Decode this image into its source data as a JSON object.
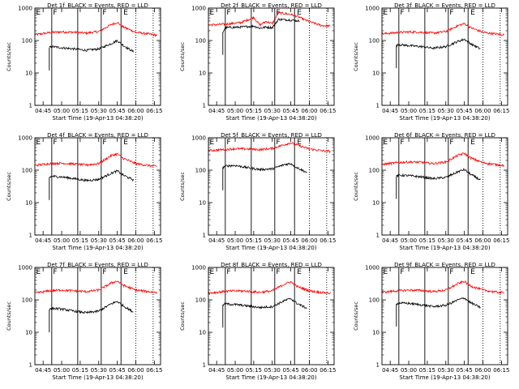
{
  "figure": {
    "xlabel": "Start Time (19-Apr-13 04:38:20)",
    "ylabel": "Counts/sec"
  },
  "colors": {
    "events": "#000000",
    "lld": "#ff0000",
    "background": "#ffffff"
  },
  "chart_data": [
    {
      "type": "line",
      "title": "Det 1f_BLACK = Events, RED = LLD",
      "xlabel": "Start Time (19-Apr-13 04:38:20)",
      "ylabel": "Counts/sec",
      "yscale": "log",
      "ylim": [
        1,
        1000
      ],
      "xlim": [
        "04:38:20",
        "06:20:00"
      ],
      "x_ticks": [
        "04:45",
        "05:00",
        "05:15",
        "05:30",
        "05:45",
        "06:00",
        "06:15"
      ],
      "y_ticks": [
        "1",
        "10",
        "100",
        "1000"
      ],
      "solid_lines": [
        "04:52",
        "05:13",
        "05:32",
        "05:48"
      ],
      "dotted_lines": [
        "06:00",
        "06:14"
      ],
      "markers": [
        {
          "label": "F",
          "at": "04:52"
        },
        {
          "label": "F",
          "at": "05:32"
        },
        {
          "label": "E",
          "at": "05:49"
        }
      ],
      "series": [
        {
          "name": "LLD",
          "color": "red",
          "x": [
            "04:38",
            "04:50",
            "05:00",
            "05:10",
            "05:20",
            "05:30",
            "05:40",
            "05:45",
            "05:50",
            "06:00",
            "06:10",
            "06:17"
          ],
          "values": [
            150,
            175,
            185,
            180,
            170,
            190,
            310,
            360,
            260,
            180,
            160,
            145
          ]
        },
        {
          "name": "Events",
          "color": "black",
          "x": [
            "04:50",
            "04:52",
            "05:00",
            "05:10",
            "05:20",
            "05:30",
            "05:40",
            "05:45",
            "05:50",
            "05:58"
          ],
          "values": [
            60,
            65,
            60,
            55,
            50,
            55,
            80,
            100,
            70,
            45
          ]
        }
      ]
    },
    {
      "type": "line",
      "title": "Det 2f_BLACK = Events, RED = LLD",
      "xlabel": "Start Time (19-Apr-13 04:38:20)",
      "ylabel": "Counts/sec",
      "yscale": "log",
      "ylim": [
        1,
        1000
      ],
      "xlim": [
        "04:38:20",
        "06:20:00"
      ],
      "x_ticks": [
        "04:45",
        "05:00",
        "05:15",
        "05:30",
        "05:45",
        "06:00",
        "06:15"
      ],
      "y_ticks": [
        "1",
        "10",
        "100",
        "1000"
      ],
      "solid_lines": [
        "04:52",
        "05:13",
        "05:32",
        "05:48"
      ],
      "dotted_lines": [
        "06:00",
        "06:14"
      ],
      "markers": [
        {
          "label": "F",
          "at": "04:52"
        },
        {
          "label": "F",
          "at": "05:32"
        },
        {
          "label": "E",
          "at": "05:49"
        }
      ],
      "series": [
        {
          "name": "LLD",
          "color": "red",
          "x": [
            "04:38",
            "04:52",
            "05:05",
            "05:15",
            "05:20",
            "05:25",
            "05:30",
            "05:35",
            "05:45",
            "05:50",
            "06:00",
            "06:10",
            "06:17"
          ],
          "values": [
            300,
            320,
            360,
            520,
            300,
            390,
            330,
            720,
            640,
            560,
            380,
            290,
            280
          ]
        },
        {
          "name": "Events",
          "color": "black",
          "x": [
            "04:50",
            "04:52",
            "05:05",
            "05:15",
            "05:20",
            "05:25",
            "05:30",
            "05:35",
            "05:45",
            "05:52"
          ],
          "values": [
            180,
            250,
            260,
            280,
            240,
            260,
            250,
            450,
            430,
            400
          ]
        }
      ]
    },
    {
      "type": "line",
      "title": "Det 3f_BLACK = Events, RED = LLD",
      "xlabel": "Start Time (19-Apr-13 04:38:20)",
      "ylabel": "Counts/sec",
      "yscale": "log",
      "ylim": [
        1,
        1000
      ],
      "xlim": [
        "04:38:20",
        "06:20:00"
      ],
      "x_ticks": [
        "04:45",
        "05:00",
        "05:15",
        "05:30",
        "05:45",
        "06:00",
        "06:15"
      ],
      "y_ticks": [
        "1",
        "10",
        "100",
        "1000"
      ],
      "solid_lines": [
        "04:52",
        "05:13",
        "05:32",
        "05:48"
      ],
      "dotted_lines": [
        "06:00",
        "06:14"
      ],
      "markers": [
        {
          "label": "F",
          "at": "04:52"
        },
        {
          "label": "F",
          "at": "05:32"
        },
        {
          "label": "E",
          "at": "05:49"
        }
      ],
      "series": [
        {
          "name": "LLD",
          "color": "red",
          "x": [
            "04:38",
            "04:50",
            "05:00",
            "05:10",
            "05:20",
            "05:30",
            "05:40",
            "05:45",
            "05:50",
            "06:00",
            "06:10",
            "06:17"
          ],
          "values": [
            160,
            175,
            185,
            180,
            170,
            190,
            290,
            330,
            250,
            180,
            160,
            150
          ]
        },
        {
          "name": "Events",
          "color": "black",
          "x": [
            "04:50",
            "04:52",
            "05:00",
            "05:10",
            "05:20",
            "05:30",
            "05:40",
            "05:45",
            "05:50",
            "05:58"
          ],
          "values": [
            70,
            75,
            70,
            65,
            58,
            65,
            95,
            110,
            80,
            55
          ]
        }
      ]
    },
    {
      "type": "line",
      "title": "Det 4f_BLACK = Events, RED = LLD",
      "xlabel": "Start Time (19-Apr-13 04:38:20)",
      "ylabel": "Counts/sec",
      "yscale": "log",
      "ylim": [
        1,
        1000
      ],
      "xlim": [
        "04:38:20",
        "06:20:00"
      ],
      "x_ticks": [
        "04:45",
        "05:00",
        "05:15",
        "05:30",
        "05:45",
        "06:00",
        "06:15"
      ],
      "y_ticks": [
        "1",
        "10",
        "100",
        "1000"
      ],
      "solid_lines": [
        "04:52",
        "05:13",
        "05:32",
        "05:48"
      ],
      "dotted_lines": [
        "06:00",
        "06:14"
      ],
      "markers": [
        {
          "label": "F",
          "at": "04:52"
        },
        {
          "label": "F",
          "at": "05:32"
        },
        {
          "label": "E",
          "at": "05:49"
        }
      ],
      "series": [
        {
          "name": "LLD",
          "color": "red",
          "x": [
            "04:38",
            "04:50",
            "05:00",
            "05:10",
            "05:20",
            "05:30",
            "05:40",
            "05:45",
            "05:50",
            "06:00",
            "06:10",
            "06:17"
          ],
          "values": [
            140,
            160,
            165,
            155,
            145,
            160,
            280,
            320,
            230,
            160,
            140,
            130
          ]
        },
        {
          "name": "Events",
          "color": "black",
          "x": [
            "04:50",
            "04:52",
            "05:00",
            "05:10",
            "05:20",
            "05:30",
            "05:40",
            "05:45",
            "05:50",
            "05:58"
          ],
          "values": [
            60,
            65,
            62,
            55,
            48,
            52,
            80,
            95,
            70,
            50
          ]
        }
      ]
    },
    {
      "type": "line",
      "title": "Det 5f_BLACK = Events, RED = LLD",
      "xlabel": "Start Time (19-Apr-13 04:38:20)",
      "ylabel": "Counts/sec",
      "yscale": "log",
      "ylim": [
        1,
        1000
      ],
      "xlim": [
        "04:38:20",
        "06:20:00"
      ],
      "x_ticks": [
        "04:45",
        "05:00",
        "05:15",
        "05:30",
        "05:45",
        "06:00",
        "06:15"
      ],
      "y_ticks": [
        "1",
        "10",
        "100",
        "1000"
      ],
      "solid_lines": [
        "04:52",
        "05:13",
        "05:32",
        "05:48"
      ],
      "dotted_lines": [
        "06:00",
        "06:14"
      ],
      "markers": [
        {
          "label": "F",
          "at": "04:52"
        },
        {
          "label": "F",
          "at": "05:32"
        },
        {
          "label": "E",
          "at": "05:49"
        }
      ],
      "series": [
        {
          "name": "LLD",
          "color": "red",
          "x": [
            "04:38",
            "04:50",
            "05:00",
            "05:10",
            "05:20",
            "05:30",
            "05:40",
            "05:45",
            "05:50",
            "06:00",
            "06:10",
            "06:17"
          ],
          "values": [
            400,
            430,
            460,
            450,
            430,
            470,
            620,
            700,
            600,
            450,
            400,
            380
          ]
        },
        {
          "name": "Events",
          "color": "black",
          "x": [
            "04:50",
            "04:52",
            "05:00",
            "05:10",
            "05:20",
            "05:30",
            "05:40",
            "05:45",
            "05:50",
            "05:58"
          ],
          "values": [
            120,
            135,
            140,
            120,
            105,
            110,
            150,
            160,
            120,
            85
          ]
        }
      ]
    },
    {
      "type": "line",
      "title": "Det 6f_BLACK = Events, RED = LLD",
      "xlabel": "Start Time (19-Apr-13 04:38:20)",
      "ylabel": "Counts/sec",
      "yscale": "log",
      "ylim": [
        1,
        1000
      ],
      "xlim": [
        "04:38:20",
        "06:20:00"
      ],
      "x_ticks": [
        "04:45",
        "05:00",
        "05:15",
        "05:30",
        "05:45",
        "06:00",
        "06:15"
      ],
      "y_ticks": [
        "1",
        "10",
        "100",
        "1000"
      ],
      "solid_lines": [
        "04:52",
        "05:13",
        "05:32",
        "05:48"
      ],
      "dotted_lines": [
        "06:00",
        "06:14"
      ],
      "markers": [
        {
          "label": "F",
          "at": "04:52"
        },
        {
          "label": "F",
          "at": "05:32"
        },
        {
          "label": "E",
          "at": "05:49"
        }
      ],
      "series": [
        {
          "name": "LLD",
          "color": "red",
          "x": [
            "04:38",
            "04:50",
            "05:00",
            "05:10",
            "05:20",
            "05:30",
            "05:40",
            "05:45",
            "05:50",
            "06:00",
            "06:10",
            "06:17"
          ],
          "values": [
            150,
            170,
            180,
            175,
            160,
            180,
            290,
            330,
            240,
            170,
            150,
            140
          ]
        },
        {
          "name": "Events",
          "color": "black",
          "x": [
            "04:50",
            "04:52",
            "05:00",
            "05:10",
            "05:20",
            "05:30",
            "05:40",
            "05:45",
            "05:50",
            "05:58"
          ],
          "values": [
            65,
            70,
            68,
            62,
            55,
            60,
            90,
            105,
            75,
            50
          ]
        }
      ]
    },
    {
      "type": "line",
      "title": "Det 7f_BLACK = Events, RED = LLD",
      "xlabel": "Start Time (19-Apr-13 04:38:20)",
      "ylabel": "Counts/sec",
      "yscale": "log",
      "ylim": [
        1,
        1000
      ],
      "xlim": [
        "04:38:20",
        "06:20:00"
      ],
      "x_ticks": [
        "04:45",
        "05:00",
        "05:15",
        "05:30",
        "05:45",
        "06:00",
        "06:15"
      ],
      "y_ticks": [
        "1",
        "10",
        "100",
        "1000"
      ],
      "solid_lines": [
        "04:52",
        "05:13",
        "05:32",
        "05:48"
      ],
      "dotted_lines": [
        "06:00",
        "06:14"
      ],
      "markers": [
        {
          "label": "F",
          "at": "04:52"
        },
        {
          "label": "F",
          "at": "05:32"
        },
        {
          "label": "E",
          "at": "05:49"
        }
      ],
      "series": [
        {
          "name": "LLD",
          "color": "red",
          "x": [
            "04:38",
            "04:50",
            "05:00",
            "05:10",
            "05:20",
            "05:30",
            "05:40",
            "05:45",
            "05:50",
            "06:00",
            "06:10",
            "06:17"
          ],
          "values": [
            160,
            190,
            200,
            190,
            180,
            200,
            330,
            380,
            280,
            200,
            180,
            170
          ]
        },
        {
          "name": "Events",
          "color": "black",
          "x": [
            "04:50",
            "04:52",
            "05:00",
            "05:10",
            "05:20",
            "05:30",
            "05:40",
            "05:45",
            "05:50",
            "05:58"
          ],
          "values": [
            50,
            55,
            52,
            45,
            40,
            45,
            75,
            90,
            65,
            42
          ]
        }
      ]
    },
    {
      "type": "line",
      "title": "Det 8f_BLACK = Events, RED = LLD",
      "xlabel": "Start Time (19-Apr-13 04:38:20)",
      "ylabel": "Counts/sec",
      "yscale": "log",
      "ylim": [
        1,
        1000
      ],
      "xlim": [
        "04:38:20",
        "06:20:00"
      ],
      "x_ticks": [
        "04:45",
        "05:00",
        "05:15",
        "05:30",
        "05:45",
        "06:00",
        "06:15"
      ],
      "y_ticks": [
        "1",
        "10",
        "100",
        "1000"
      ],
      "solid_lines": [
        "04:52",
        "05:13",
        "05:32",
        "05:48"
      ],
      "dotted_lines": [
        "06:00",
        "06:14"
      ],
      "markers": [
        {
          "label": "F",
          "at": "04:52"
        },
        {
          "label": "F",
          "at": "05:32"
        },
        {
          "label": "E",
          "at": "05:49"
        }
      ],
      "series": [
        {
          "name": "LLD",
          "color": "red",
          "x": [
            "04:38",
            "04:50",
            "05:00",
            "05:10",
            "05:20",
            "05:30",
            "05:40",
            "05:45",
            "05:50",
            "06:00",
            "06:10",
            "06:17"
          ],
          "values": [
            160,
            180,
            190,
            185,
            170,
            190,
            310,
            360,
            260,
            190,
            170,
            160
          ]
        },
        {
          "name": "Events",
          "color": "black",
          "x": [
            "04:50",
            "04:52",
            "05:00",
            "05:10",
            "05:20",
            "05:30",
            "05:40",
            "05:45",
            "05:50",
            "05:58"
          ],
          "values": [
            70,
            75,
            72,
            65,
            58,
            62,
            95,
            110,
            78,
            55
          ]
        }
      ]
    },
    {
      "type": "line",
      "title": "Det 9f_BLACK = Events, RED = LLD",
      "xlabel": "Start Time (19-Apr-13 04:38:20)",
      "ylabel": "Counts/sec",
      "yscale": "log",
      "ylim": [
        1,
        1000
      ],
      "xlim": [
        "04:38:20",
        "06:20:00"
      ],
      "x_ticks": [
        "04:45",
        "05:00",
        "05:15",
        "05:30",
        "05:45",
        "06:00",
        "06:15"
      ],
      "y_ticks": [
        "1",
        "10",
        "100",
        "1000"
      ],
      "solid_lines": [
        "04:52",
        "05:13",
        "05:32",
        "05:48"
      ],
      "dotted_lines": [
        "06:00",
        "06:14"
      ],
      "markers": [
        {
          "label": "F",
          "at": "04:52"
        },
        {
          "label": "F",
          "at": "05:32"
        },
        {
          "label": "E",
          "at": "05:49"
        }
      ],
      "series": [
        {
          "name": "LLD",
          "color": "red",
          "x": [
            "04:38",
            "04:50",
            "05:00",
            "05:10",
            "05:20",
            "05:30",
            "05:40",
            "05:45",
            "05:50",
            "06:00",
            "06:10",
            "06:17"
          ],
          "values": [
            170,
            190,
            200,
            195,
            180,
            200,
            320,
            370,
            270,
            200,
            175,
            165
          ]
        },
        {
          "name": "Events",
          "color": "black",
          "x": [
            "04:50",
            "04:52",
            "05:00",
            "05:10",
            "05:20",
            "05:30",
            "05:40",
            "05:45",
            "05:50",
            "05:58"
          ],
          "values": [
            75,
            80,
            78,
            70,
            62,
            68,
            100,
            115,
            82,
            58
          ]
        }
      ]
    }
  ]
}
